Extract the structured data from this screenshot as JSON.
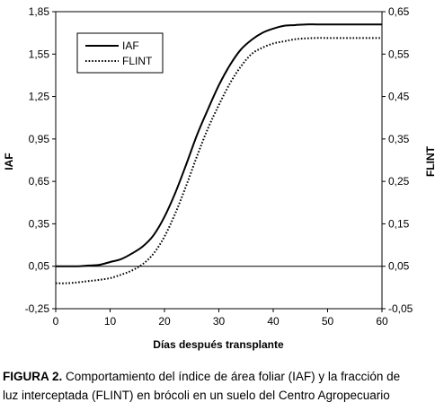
{
  "chart_data": {
    "type": "line",
    "title": "",
    "xlabel": "Días después transplante",
    "ylabel_left": "IAF",
    "ylabel_right": "FLINT",
    "xlim": [
      0,
      60
    ],
    "x_ticks": [
      "0",
      "10",
      "20",
      "30",
      "40",
      "50",
      "60"
    ],
    "ylim_left": [
      -0.25,
      1.85
    ],
    "y_ticks_left": [
      "-0,25",
      "0,05",
      "0,35",
      "0,65",
      "0,95",
      "1,25",
      "1,55",
      "1,85"
    ],
    "ylim_right": [
      -0.05,
      0.65
    ],
    "y_ticks_right": [
      "-0,05",
      "0,05",
      "0,15",
      "0,25",
      "0,35",
      "0,45",
      "0,55",
      "0,65"
    ],
    "reference_line": {
      "axis": "left",
      "y": 0.05
    },
    "grid": false,
    "legend_position": "top-left",
    "series": [
      {
        "name": "IAF",
        "axis": "left",
        "style": "solid",
        "color": "#000000",
        "x": [
          0,
          2,
          4,
          6,
          8,
          10,
          12,
          14,
          16,
          18,
          20,
          22,
          24,
          26,
          28,
          30,
          32,
          34,
          36,
          38,
          40,
          42,
          44,
          46,
          48,
          50,
          55,
          60
        ],
        "y": [
          0.05,
          0.05,
          0.05,
          0.055,
          0.06,
          0.08,
          0.1,
          0.14,
          0.19,
          0.27,
          0.4,
          0.57,
          0.77,
          0.98,
          1.16,
          1.33,
          1.47,
          1.58,
          1.65,
          1.7,
          1.73,
          1.75,
          1.755,
          1.76,
          1.76,
          1.76,
          1.76,
          1.76
        ]
      },
      {
        "name": "FLINT",
        "axis": "right",
        "style": "dotted",
        "color": "#000000",
        "x": [
          0,
          2,
          4,
          6,
          8,
          10,
          12,
          14,
          16,
          18,
          20,
          22,
          24,
          26,
          28,
          30,
          32,
          34,
          36,
          38,
          40,
          42,
          44,
          46,
          48,
          50,
          55,
          60
        ],
        "y": [
          0.01,
          0.01,
          0.012,
          0.015,
          0.018,
          0.022,
          0.03,
          0.04,
          0.055,
          0.08,
          0.12,
          0.175,
          0.24,
          0.31,
          0.375,
          0.43,
          0.48,
          0.52,
          0.55,
          0.565,
          0.575,
          0.58,
          0.585,
          0.587,
          0.588,
          0.588,
          0.588,
          0.588
        ]
      }
    ]
  },
  "caption": {
    "label": "FIGURA 2.",
    "line1": " Comportamiento del índice de área foliar (IAF) y la fracción de",
    "line2": "luz interceptada (FLINT) en brócoli en un suelo del Centro Agropecuario"
  }
}
